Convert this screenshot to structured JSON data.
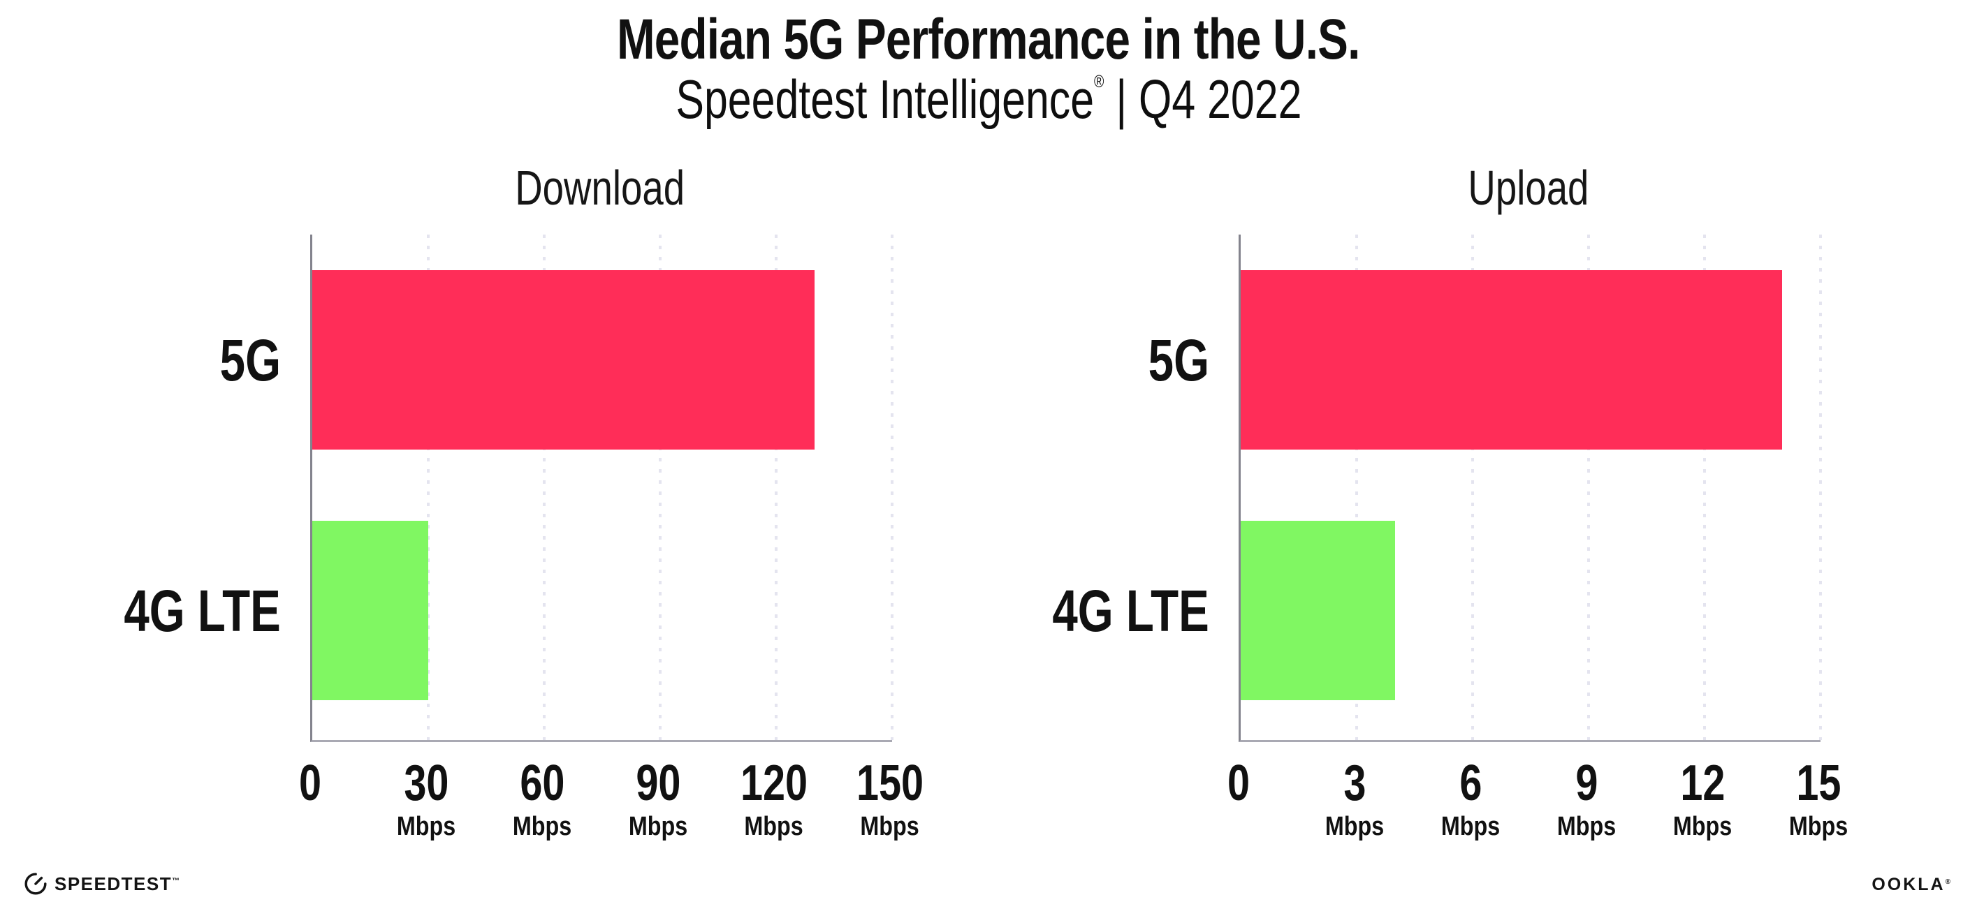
{
  "header": {
    "title": "Median 5G Performance in the U.S.",
    "subtitle_brand": "Speedtest Intelligence",
    "subtitle_reg": "®",
    "subtitle_rest": " | Q4 2022"
  },
  "chart_data": [
    {
      "type": "bar",
      "orientation": "horizontal",
      "title": "Download",
      "categories": [
        "5G",
        "4G LTE"
      ],
      "values": [
        130,
        30
      ],
      "xlim": [
        0,
        150
      ],
      "xticks": [
        "0",
        "30",
        "60",
        "90",
        "120",
        "150"
      ],
      "xtick_unit": "Mbps",
      "bar_colors": [
        "#ff2d58",
        "#80f762"
      ],
      "grid": "vertical-dotted",
      "legend": "none"
    },
    {
      "type": "bar",
      "orientation": "horizontal",
      "title": "Upload",
      "categories": [
        "5G",
        "4G LTE"
      ],
      "values": [
        14,
        4
      ],
      "xlim": [
        0,
        15
      ],
      "xticks": [
        "0",
        "3",
        "6",
        "9",
        "12",
        "15"
      ],
      "xtick_unit": "Mbps",
      "bar_colors": [
        "#ff2d58",
        "#80f762"
      ],
      "grid": "vertical-dotted",
      "legend": "none"
    }
  ],
  "footer": {
    "speedtest_label": "SPEEDTEST",
    "speedtest_tm": "™",
    "ookla_label": "OOKLA",
    "ookla_reg": "®"
  },
  "colors": {
    "bar_5g": "#ff2d58",
    "bar_4g_lte": "#80f762",
    "axis": "#8f8f99",
    "gridline": "#e4e4ef",
    "text": "#111111"
  }
}
